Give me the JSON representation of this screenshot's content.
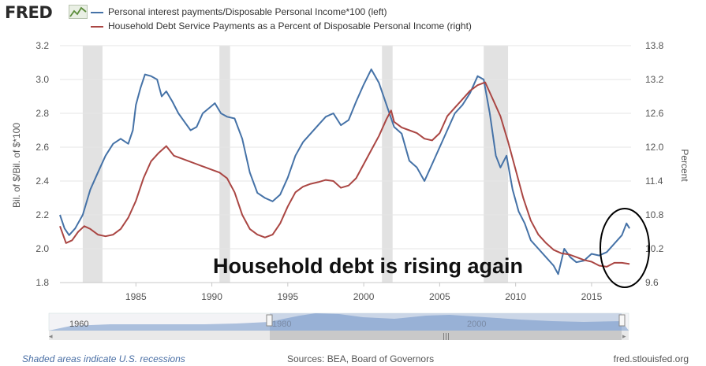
{
  "header": {
    "logo_text": "FRED",
    "logo_icon": "chart-line-icon"
  },
  "legend": [
    {
      "label": "Personal interest payments/Disposable Personal Income*100 (left)",
      "color": "#4572a7"
    },
    {
      "label": "Household Debt Service Payments as a Percent of Disposable Personal Income (right)",
      "color": "#aa4643"
    }
  ],
  "annotation": "Household debt is rising again",
  "footer": {
    "recessions_note": "Shaded areas indicate U.S. recessions",
    "sources": "Sources: BEA, Board of Governors",
    "site": "fred.stlouisfed.org"
  },
  "navigator": {
    "labels": [
      "1960",
      "1980",
      "2000"
    ]
  },
  "chart_data": {
    "type": "line",
    "xlabel": "",
    "ylabel_left": "Bil. of $/Bil. of $*100",
    "ylabel_right": "Percent",
    "xlim": [
      1980.0,
      2017.6
    ],
    "ylim_left": [
      1.8,
      3.2
    ],
    "ylim_right": [
      9.6,
      13.8
    ],
    "x_ticks": [
      1985,
      1990,
      1995,
      2000,
      2005,
      2010,
      2015
    ],
    "y_ticks_left": [
      "1.8",
      "2.0",
      "2.2",
      "2.4",
      "2.6",
      "2.8",
      "3.0",
      "3.2"
    ],
    "y_ticks_right": [
      "9.6",
      "10.2",
      "10.8",
      "11.4",
      "12.0",
      "12.6",
      "13.2",
      "13.8"
    ],
    "grid": true,
    "legend_position": "top",
    "recessions": [
      [
        1981.5,
        1982.8
      ],
      [
        1990.5,
        1991.2
      ],
      [
        2001.2,
        2001.9
      ],
      [
        2007.9,
        2009.5
      ]
    ],
    "series": [
      {
        "name": "Personal interest payments/Disposable Personal Income*100 (left)",
        "axis": "left",
        "color": "#4572a7",
        "points": [
          [
            1980.0,
            2.2
          ],
          [
            1980.3,
            2.12
          ],
          [
            1980.6,
            2.08
          ],
          [
            1981.0,
            2.12
          ],
          [
            1981.5,
            2.2
          ],
          [
            1982.0,
            2.35
          ],
          [
            1982.5,
            2.45
          ],
          [
            1983.0,
            2.55
          ],
          [
            1983.5,
            2.62
          ],
          [
            1984.0,
            2.65
          ],
          [
            1984.5,
            2.62
          ],
          [
            1984.8,
            2.7
          ],
          [
            1985.0,
            2.85
          ],
          [
            1985.3,
            2.95
          ],
          [
            1985.6,
            3.03
          ],
          [
            1986.0,
            3.02
          ],
          [
            1986.4,
            3.0
          ],
          [
            1986.7,
            2.9
          ],
          [
            1987.0,
            2.93
          ],
          [
            1987.4,
            2.87
          ],
          [
            1987.8,
            2.8
          ],
          [
            1988.2,
            2.75
          ],
          [
            1988.6,
            2.7
          ],
          [
            1989.0,
            2.72
          ],
          [
            1989.4,
            2.8
          ],
          [
            1989.8,
            2.83
          ],
          [
            1990.2,
            2.86
          ],
          [
            1990.6,
            2.8
          ],
          [
            1991.0,
            2.78
          ],
          [
            1991.5,
            2.77
          ],
          [
            1992.0,
            2.65
          ],
          [
            1992.5,
            2.45
          ],
          [
            1993.0,
            2.33
          ],
          [
            1993.5,
            2.3
          ],
          [
            1994.0,
            2.28
          ],
          [
            1994.5,
            2.32
          ],
          [
            1995.0,
            2.42
          ],
          [
            1995.5,
            2.55
          ],
          [
            1996.0,
            2.63
          ],
          [
            1996.5,
            2.68
          ],
          [
            1997.0,
            2.73
          ],
          [
            1997.5,
            2.78
          ],
          [
            1998.0,
            2.8
          ],
          [
            1998.5,
            2.73
          ],
          [
            1999.0,
            2.76
          ],
          [
            1999.5,
            2.87
          ],
          [
            2000.0,
            2.97
          ],
          [
            2000.5,
            3.06
          ],
          [
            2001.0,
            2.98
          ],
          [
            2001.5,
            2.85
          ],
          [
            2002.0,
            2.72
          ],
          [
            2002.5,
            2.68
          ],
          [
            2003.0,
            2.52
          ],
          [
            2003.5,
            2.48
          ],
          [
            2004.0,
            2.4
          ],
          [
            2004.5,
            2.5
          ],
          [
            2005.0,
            2.6
          ],
          [
            2005.5,
            2.7
          ],
          [
            2006.0,
            2.8
          ],
          [
            2006.5,
            2.85
          ],
          [
            2007.0,
            2.92
          ],
          [
            2007.5,
            3.02
          ],
          [
            2007.9,
            3.0
          ],
          [
            2008.3,
            2.8
          ],
          [
            2008.7,
            2.55
          ],
          [
            2009.0,
            2.48
          ],
          [
            2009.4,
            2.55
          ],
          [
            2009.8,
            2.35
          ],
          [
            2010.2,
            2.22
          ],
          [
            2010.6,
            2.15
          ],
          [
            2011.0,
            2.05
          ],
          [
            2011.5,
            2.0
          ],
          [
            2012.0,
            1.95
          ],
          [
            2012.5,
            1.9
          ],
          [
            2012.8,
            1.85
          ],
          [
            2013.2,
            2.0
          ],
          [
            2013.6,
            1.95
          ],
          [
            2014.0,
            1.92
          ],
          [
            2014.5,
            1.93
          ],
          [
            2015.0,
            1.97
          ],
          [
            2015.5,
            1.96
          ],
          [
            2016.0,
            1.98
          ],
          [
            2016.5,
            2.03
          ],
          [
            2017.0,
            2.08
          ],
          [
            2017.3,
            2.15
          ],
          [
            2017.5,
            2.12
          ]
        ]
      },
      {
        "name": "Household Debt Service Payments as a Percent of Disposable Personal Income (right)",
        "axis": "right",
        "color": "#aa4643",
        "points": [
          [
            1980.0,
            10.6
          ],
          [
            1980.4,
            10.3
          ],
          [
            1980.8,
            10.35
          ],
          [
            1981.2,
            10.5
          ],
          [
            1981.6,
            10.6
          ],
          [
            1982.0,
            10.55
          ],
          [
            1982.5,
            10.45
          ],
          [
            1983.0,
            10.42
          ],
          [
            1983.5,
            10.45
          ],
          [
            1984.0,
            10.55
          ],
          [
            1984.5,
            10.75
          ],
          [
            1985.0,
            11.05
          ],
          [
            1985.5,
            11.45
          ],
          [
            1986.0,
            11.75
          ],
          [
            1986.5,
            11.9
          ],
          [
            1987.0,
            12.02
          ],
          [
            1987.5,
            11.85
          ],
          [
            1988.0,
            11.8
          ],
          [
            1988.5,
            11.75
          ],
          [
            1989.0,
            11.7
          ],
          [
            1989.5,
            11.65
          ],
          [
            1990.0,
            11.6
          ],
          [
            1990.5,
            11.55
          ],
          [
            1991.0,
            11.45
          ],
          [
            1991.5,
            11.2
          ],
          [
            1992.0,
            10.8
          ],
          [
            1992.5,
            10.55
          ],
          [
            1993.0,
            10.45
          ],
          [
            1993.5,
            10.4
          ],
          [
            1994.0,
            10.45
          ],
          [
            1994.5,
            10.65
          ],
          [
            1995.0,
            10.95
          ],
          [
            1995.5,
            11.2
          ],
          [
            1996.0,
            11.3
          ],
          [
            1996.5,
            11.35
          ],
          [
            1997.0,
            11.38
          ],
          [
            1997.5,
            11.42
          ],
          [
            1998.0,
            11.4
          ],
          [
            1998.5,
            11.28
          ],
          [
            1999.0,
            11.32
          ],
          [
            1999.5,
            11.45
          ],
          [
            2000.0,
            11.7
          ],
          [
            2000.5,
            11.95
          ],
          [
            2001.0,
            12.2
          ],
          [
            2001.5,
            12.5
          ],
          [
            2001.8,
            12.65
          ],
          [
            2002.0,
            12.45
          ],
          [
            2002.5,
            12.35
          ],
          [
            2003.0,
            12.3
          ],
          [
            2003.5,
            12.25
          ],
          [
            2004.0,
            12.15
          ],
          [
            2004.5,
            12.12
          ],
          [
            2005.0,
            12.25
          ],
          [
            2005.5,
            12.55
          ],
          [
            2006.0,
            12.7
          ],
          [
            2006.5,
            12.85
          ],
          [
            2007.0,
            13.0
          ],
          [
            2007.5,
            13.1
          ],
          [
            2008.0,
            13.15
          ],
          [
            2008.5,
            12.85
          ],
          [
            2009.0,
            12.55
          ],
          [
            2009.5,
            12.1
          ],
          [
            2010.0,
            11.6
          ],
          [
            2010.5,
            11.1
          ],
          [
            2011.0,
            10.7
          ],
          [
            2011.5,
            10.45
          ],
          [
            2012.0,
            10.3
          ],
          [
            2012.5,
            10.18
          ],
          [
            2013.0,
            10.12
          ],
          [
            2013.5,
            10.1
          ],
          [
            2014.0,
            10.05
          ],
          [
            2014.5,
            10.0
          ],
          [
            2015.0,
            9.97
          ],
          [
            2015.5,
            9.9
          ],
          [
            2016.0,
            9.88
          ],
          [
            2016.5,
            9.95
          ],
          [
            2017.0,
            9.95
          ],
          [
            2017.5,
            9.93
          ]
        ]
      }
    ]
  }
}
